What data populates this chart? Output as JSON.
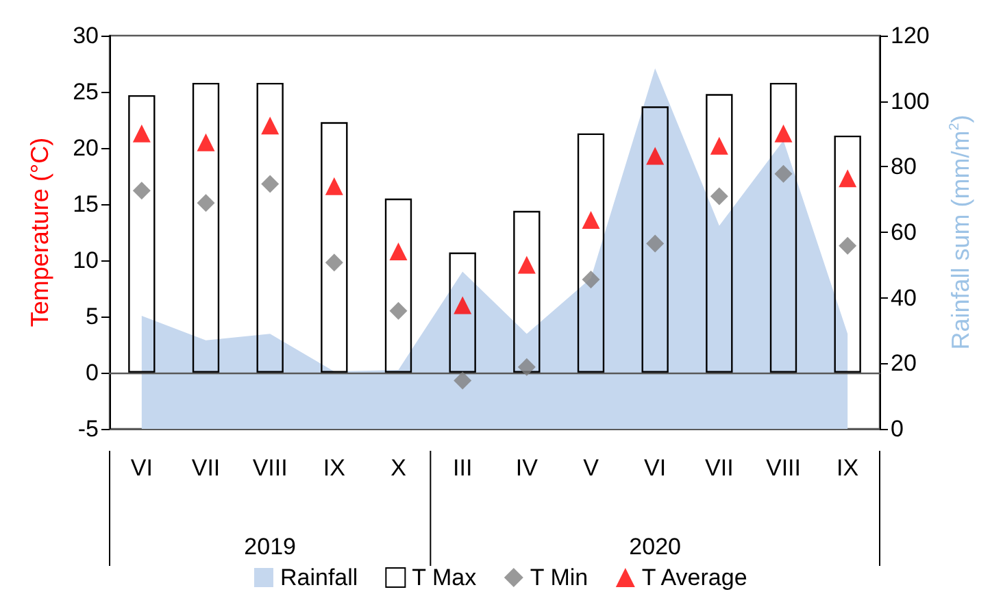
{
  "chart_data": {
    "type": "bar",
    "ylabel": "Temperature (°C)",
    "y2label": "Rainfall sum (mm/m$^{2}$)",
    "categories": [
      "VI",
      "VII",
      "VIII",
      "IX",
      "X",
      "III",
      "IV",
      "V",
      "VI",
      "VII",
      "VIII",
      "IX"
    ],
    "series": [
      {
        "name": "Rainfall",
        "type": "area",
        "axis": "y2",
        "color": "#c5d7ee",
        "values": [
          34.5,
          27,
          29,
          17.5,
          18,
          48,
          29,
          46,
          110,
          62,
          88,
          29
        ]
      },
      {
        "name": "T Max",
        "color": "#000000",
        "values": [
          24.7,
          25.8,
          25.8,
          22.3,
          15.5,
          10.7,
          14.4,
          21.3,
          23.7,
          24.8,
          25.8,
          21.1
        ]
      },
      {
        "name": "T Min",
        "type": "scatter",
        "marker": "diamond",
        "color": "#7f7f7f",
        "values": [
          16.2,
          15.1,
          16.8,
          9.8,
          5.5,
          -0.7,
          0.5,
          8.3,
          11.5,
          15.7,
          17.7,
          11.3
        ]
      },
      {
        "name": "T Average",
        "type": "scatter",
        "marker": "triangle",
        "color": "#ff0000",
        "values": [
          21.3,
          20.5,
          22,
          16.6,
          10.8,
          6,
          9.6,
          13.6,
          19.3,
          20.2,
          21.3,
          17.3
        ]
      }
    ],
    "annotations": [
      "2019",
      "2020"
    ],
    "ylim": [
      -5,
      30
    ],
    "yticks": [
      -5,
      0,
      5,
      10,
      15,
      20,
      25,
      30
    ],
    "y2lim": [
      0,
      120
    ],
    "y2ticks": [
      0,
      20,
      40,
      60,
      80,
      100,
      120
    ],
    "legend": "bottom"
  }
}
